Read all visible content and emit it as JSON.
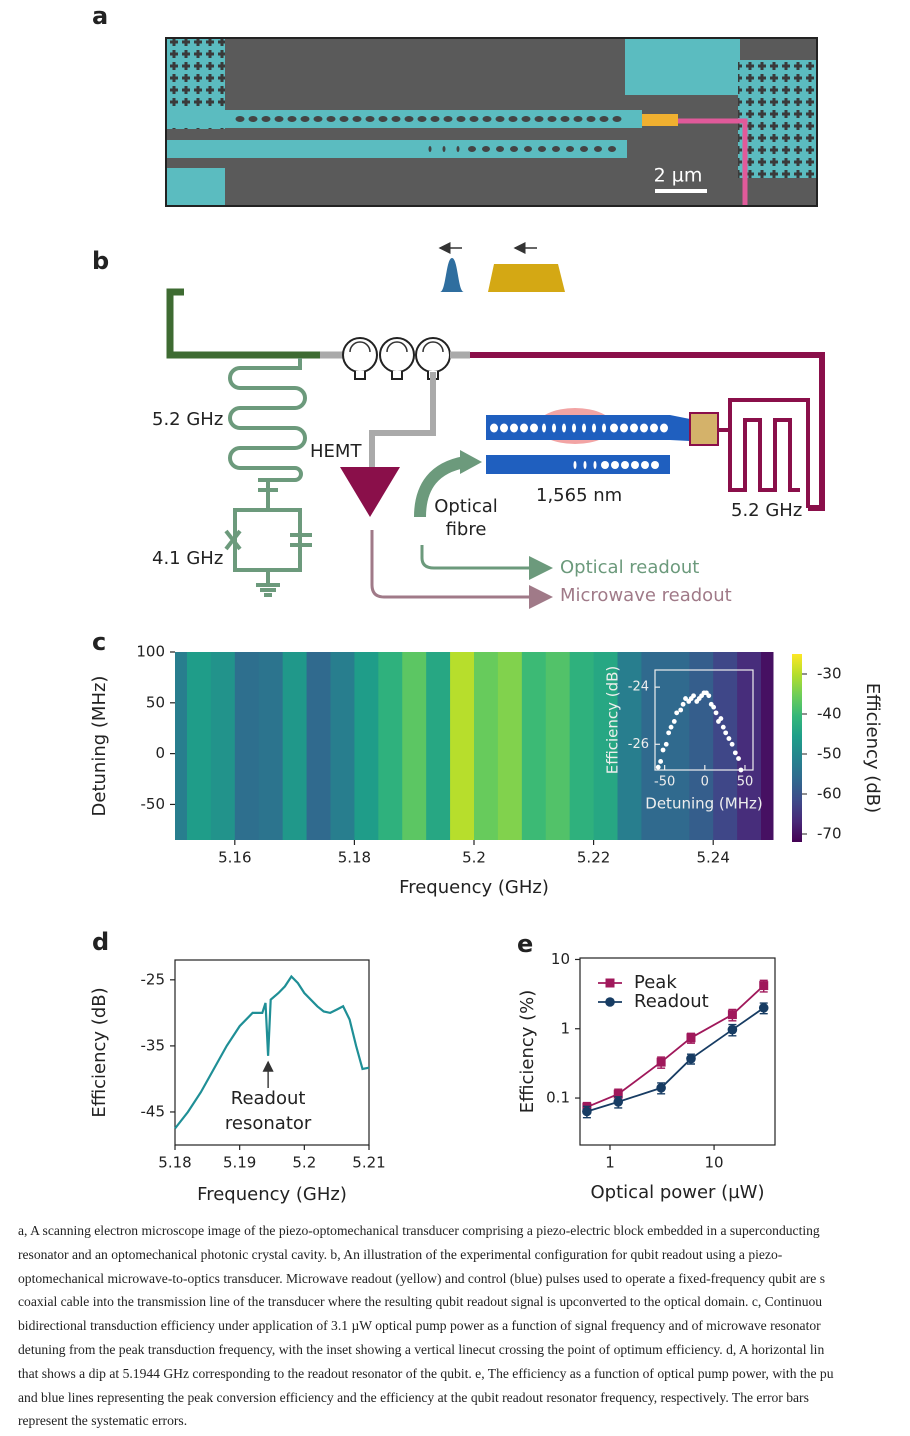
{
  "panel_labels": [
    "a",
    "b",
    "c",
    "d",
    "e"
  ],
  "panel_a": {
    "scale_bar": "2 µm"
  },
  "panel_b": {
    "resonator_left": "5.2 GHz",
    "amplifier": "HEMT",
    "qubit": "4.1 GHz",
    "fibre": [
      "Optical",
      "fibre"
    ],
    "wavelength": "1,565 nm",
    "resonator_right": "5.2 GHz",
    "optical_readout": "Optical readout",
    "microwave_readout": "Microwave readout"
  },
  "chart_data": [
    {
      "type": "heatmap",
      "xlabel": "Frequency (GHz)",
      "ylabel": "Detuning (MHz)",
      "x": [
        5.15,
        5.154,
        5.158,
        5.162,
        5.166,
        5.17,
        5.174,
        5.178,
        5.182,
        5.186,
        5.19,
        5.194,
        5.198,
        5.202,
        5.206,
        5.21,
        5.214,
        5.218,
        5.222,
        5.226,
        5.23,
        5.234,
        5.238,
        5.242,
        5.246,
        5.25
      ],
      "values": [
        -52,
        -46,
        -48,
        -55,
        -54,
        -47,
        -56,
        -52,
        -46,
        -42,
        -37,
        -44,
        -30,
        -36,
        -34,
        -40,
        -38,
        -42,
        -44,
        -52,
        -56,
        -56,
        -58,
        -62,
        -66,
        -70
      ],
      "xlim": [
        5.15,
        5.25
      ],
      "xticks": [
        5.16,
        5.18,
        5.2,
        5.22,
        5.24
      ],
      "ylim": [
        -85,
        100
      ],
      "yticks": [
        -50,
        0,
        50,
        100
      ],
      "colorbar": {
        "label": "Efficiency (dB)",
        "lim": [
          -72,
          -25
        ],
        "ticks": [
          -30,
          -40,
          -50,
          -60,
          -70
        ]
      },
      "inset": {
        "type": "scatter",
        "xlabel": "Detuning (MHz)",
        "ylabel": "Efficiency (dB)",
        "color": "#ffffff",
        "x": [
          -58,
          -55,
          -52,
          -48,
          -45,
          -42,
          -38,
          -35,
          -30,
          -27,
          -24,
          -20,
          -17,
          -14,
          -10,
          -7,
          -4,
          -1,
          2,
          5,
          8,
          11,
          14,
          17,
          20,
          23,
          26,
          30,
          34,
          38,
          42,
          45
        ],
        "values": [
          -26.8,
          -26.6,
          -26.2,
          -26.0,
          -25.6,
          -25.4,
          -25.2,
          -24.9,
          -24.8,
          -24.6,
          -24.4,
          -24.5,
          -24.4,
          -24.3,
          -24.5,
          -24.4,
          -24.3,
          -24.2,
          -24.2,
          -24.3,
          -24.6,
          -24.7,
          -24.9,
          -25.2,
          -25.1,
          -25.4,
          -25.6,
          -25.8,
          -26.0,
          -26.3,
          -26.5,
          -26.9
        ],
        "xlim": [
          -62,
          60
        ],
        "xticks": [
          -50,
          0,
          50
        ],
        "ylim": [
          -26.9,
          -23.4
        ],
        "yticks": [
          -24,
          -26
        ]
      }
    },
    {
      "type": "line",
      "xlabel": "Frequency (GHz)",
      "ylabel": "Efficiency (dB)",
      "color": "#1f8f96",
      "x": [
        5.18,
        5.182,
        5.184,
        5.186,
        5.188,
        5.19,
        5.192,
        5.1935,
        5.194,
        5.1944,
        5.1948,
        5.196,
        5.197,
        5.198,
        5.199,
        5.2,
        5.202,
        5.203,
        5.204,
        5.205,
        5.206,
        5.207,
        5.208,
        5.209,
        5.21
      ],
      "values": [
        -47.5,
        -45,
        -42,
        -38.5,
        -35,
        -32,
        -30,
        -30,
        -28.5,
        -36.5,
        -28,
        -27,
        -26,
        -24.5,
        -25.5,
        -27,
        -29,
        -29.8,
        -30,
        -29.5,
        -29,
        -31,
        -35,
        -38.5,
        -38.3
      ],
      "xlim": [
        5.18,
        5.21
      ],
      "xticks": [
        5.18,
        5.19,
        5.2,
        5.21
      ],
      "ylim": [
        -50,
        -22
      ],
      "yticks": [
        -25,
        -35,
        -45
      ],
      "annotation": [
        "Readout",
        "resonator"
      ]
    },
    {
      "type": "line",
      "log_x": true,
      "log_y": true,
      "xlabel": "Optical power (µW)",
      "ylabel": "Efficiency (%)",
      "x": [
        0.6,
        1.2,
        3.1,
        6,
        15,
        30
      ],
      "series": [
        {
          "name": "Peak",
          "color": "#a0185b",
          "marker": "square",
          "values": [
            0.074,
            0.114,
            0.33,
            0.74,
            1.6,
            4.2
          ],
          "errors": [
            0.012,
            0.02,
            0.06,
            0.12,
            0.3,
            0.8
          ]
        },
        {
          "name": "Readout",
          "color": "#173c63",
          "marker": "circle",
          "values": [
            0.064,
            0.088,
            0.14,
            0.37,
            0.97,
            2.0
          ],
          "errors": [
            0.012,
            0.016,
            0.025,
            0.06,
            0.18,
            0.35
          ]
        }
      ],
      "xlim": [
        0.515,
        38.5
      ],
      "xticks": [
        1,
        10
      ],
      "ylim": [
        0.021,
        10.5
      ],
      "yticks": [
        0.1,
        1,
        10
      ],
      "legend": "upper left"
    }
  ],
  "caption": [
    "a, A scanning electron microscope image of the piezo-optomechanical transducer comprising a piezo-electric block embedded in a superconducting",
    "resonator and an optomechanical photonic crystal cavity. b, An illustration of the experimental configuration for qubit readout using a piezo-",
    "optomechanical microwave-to-optics transducer. Microwave readout (yellow) and control (blue) pulses used to operate a fixed-frequency qubit are s",
    "coaxial cable into the transmission line of the transducer where the resulting qubit readout signal is upconverted to the optical domain. c, Continuou",
    "bidirectional transduction efficiency under application of 3.1 µW optical pump power as a function of signal frequency and of microwave resonator",
    "detuning from the peak transduction frequency, with the inset showing a vertical linecut crossing the point of optimum efficiency. d, A horizontal lin",
    "that shows a dip at 5.1944 GHz corresponding to the readout resonator of the qubit. e, The efficiency as a function of optical pump power, with the pu",
    "and blue lines representing the peak conversion efficiency and the efficiency at the qubit readout resonator frequency, respectively. The error bars",
    "represent the systematic errors."
  ]
}
